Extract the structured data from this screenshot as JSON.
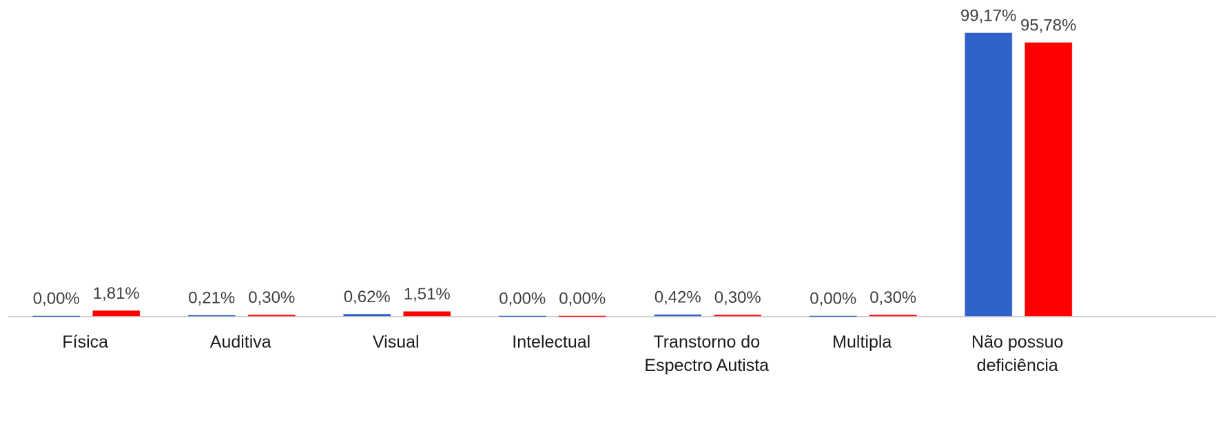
{
  "chart_data": {
    "type": "bar",
    "categories": [
      "Física",
      "Auditiva",
      "Visual",
      "Intelectual",
      "Transtorno do Espectro Autista",
      "Multipla",
      "Não possuo deficiência"
    ],
    "series": [
      {
        "color": "#2f62c8",
        "values": [
          0,
          0.21,
          0.62,
          0,
          0.42,
          0,
          99.17
        ],
        "value_labels": [
          "0,00%",
          "0,21%",
          "0,62%",
          "0,00%",
          "0,42%",
          "0,00%",
          "99,17%"
        ]
      },
      {
        "color": "#ff0000",
        "values": [
          1.81,
          0.3,
          1.51,
          0,
          0.3,
          0.3,
          95.78
        ],
        "value_labels": [
          "1,81%",
          "0,30%",
          "1,51%",
          "0,00%",
          "0,30%",
          "0,30%",
          "95,78%"
        ]
      }
    ],
    "ylim": [
      0,
      100
    ]
  }
}
